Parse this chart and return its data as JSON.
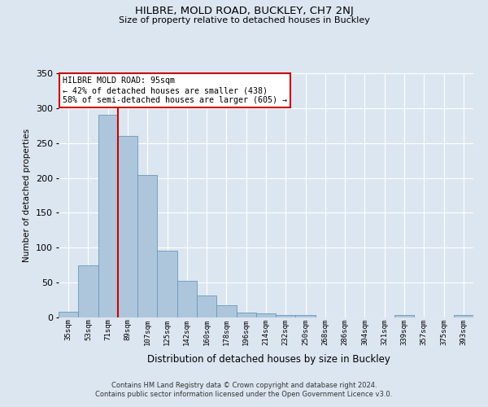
{
  "title": "HILBRE, MOLD ROAD, BUCKLEY, CH7 2NJ",
  "subtitle": "Size of property relative to detached houses in Buckley",
  "xlabel": "Distribution of detached houses by size in Buckley",
  "ylabel": "Number of detached properties",
  "categories": [
    "35sqm",
    "53sqm",
    "71sqm",
    "89sqm",
    "107sqm",
    "125sqm",
    "142sqm",
    "160sqm",
    "178sqm",
    "196sqm",
    "214sqm",
    "232sqm",
    "250sqm",
    "268sqm",
    "286sqm",
    "304sqm",
    "321sqm",
    "339sqm",
    "357sqm",
    "375sqm",
    "393sqm"
  ],
  "values": [
    8,
    75,
    290,
    260,
    204,
    96,
    53,
    32,
    18,
    7,
    6,
    4,
    3,
    0,
    0,
    0,
    0,
    3,
    0,
    0,
    3
  ],
  "bar_color": "#aec6dc",
  "bar_edge_color": "#6699bb",
  "ylim": [
    0,
    350
  ],
  "yticks": [
    0,
    50,
    100,
    150,
    200,
    250,
    300,
    350
  ],
  "annotation_line1": "HILBRE MOLD ROAD: 95sqm",
  "annotation_line2": "← 42% of detached houses are smaller (438)",
  "annotation_line3": "58% of semi-detached houses are larger (605) →",
  "annotation_box_color": "#ffffff",
  "annotation_box_edge": "#cc0000",
  "vline_color": "#cc0000",
  "vline_x": 2.5,
  "background_color": "#dce6f0",
  "grid_color": "#ffffff",
  "footer1": "Contains HM Land Registry data © Crown copyright and database right 2024.",
  "footer2": "Contains public sector information licensed under the Open Government Licence v3.0."
}
